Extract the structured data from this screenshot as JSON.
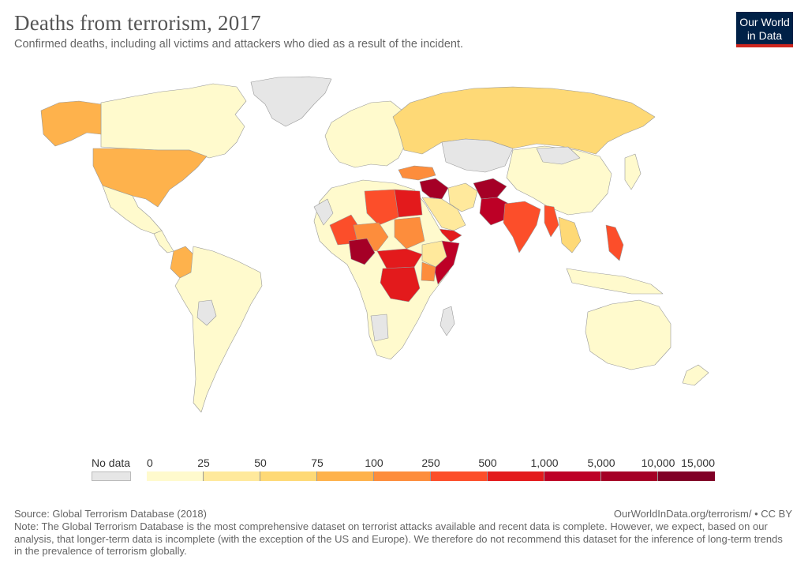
{
  "header": {
    "title": "Deaths from terrorism, 2017",
    "subtitle": "Confirmed deaths, including all victims and attackers who died as a result of the incident."
  },
  "logo": {
    "line1": "Our World",
    "line2": "in Data",
    "bg_color": "#002147",
    "accent_color": "#ce261e"
  },
  "legend": {
    "nodata_label": "No data",
    "nodata_color": "#e6e6e6",
    "ticks": [
      "0",
      "25",
      "50",
      "75",
      "100",
      "250",
      "500",
      "1,000",
      "5,000",
      "10,000",
      "15,000"
    ],
    "colors": [
      "#fffacd",
      "#ffe99c",
      "#fed976",
      "#feb24c",
      "#fd8d3c",
      "#fc4e2a",
      "#e31a1c",
      "#bd0026",
      "#a50026",
      "#800026"
    ]
  },
  "map_data": {
    "regions": [
      {
        "name": "Canada",
        "value": "0–25"
      },
      {
        "name": "Greenland",
        "value": "No data"
      },
      {
        "name": "Alaska",
        "value": "75–100"
      },
      {
        "name": "United States",
        "value": "75–100"
      },
      {
        "name": "Mexico",
        "value": "0–25"
      },
      {
        "name": "Colombia",
        "value": "75–100"
      },
      {
        "name": "South America",
        "value": "0–25"
      },
      {
        "name": "Russia",
        "value": "50–75"
      },
      {
        "name": "China",
        "value": "0–25"
      },
      {
        "name": "Europe",
        "value": "0–25"
      },
      {
        "name": "Turkey",
        "value": "100–250"
      },
      {
        "name": "Iraq / Syria",
        "value": "5,000–10,000"
      },
      {
        "name": "Afghanistan",
        "value": "5,000–10,000"
      },
      {
        "name": "Pakistan",
        "value": "1,000–5,000"
      },
      {
        "name": "India",
        "value": "250–500"
      },
      {
        "name": "Myanmar",
        "value": "250–500"
      },
      {
        "name": "Philippines",
        "value": "250–500"
      },
      {
        "name": "Libya",
        "value": "250–500"
      },
      {
        "name": "Egypt",
        "value": "500–1,000"
      },
      {
        "name": "Nigeria",
        "value": "5,000–10,000"
      },
      {
        "name": "Somalia",
        "value": "1,000–5,000"
      },
      {
        "name": "Yemen",
        "value": "500–1,000"
      },
      {
        "name": "DR Congo",
        "value": "500–1,000"
      },
      {
        "name": "Central African Republic",
        "value": "500–1,000"
      },
      {
        "name": "South Sudan",
        "value": "500–1,000"
      },
      {
        "name": "Sudan",
        "value": "100–250"
      },
      {
        "name": "Mali",
        "value": "250–500"
      },
      {
        "name": "Australia",
        "value": "0–25"
      }
    ]
  },
  "footer": {
    "source": "Source: Global Terrorism Database (2018)",
    "url": "OurWorldInData.org/terrorism/ • CC BY",
    "note": "Note: The Global Terrorism Database is the most comprehensive dataset on terrorist attacks available and recent data is complete. However, we expect, based on our analysis, that longer-term data is incomplete (with the exception of the US and Europe). We therefore do not recommend this dataset for the inference of long-term trends in the prevalence of terrorism globally."
  }
}
